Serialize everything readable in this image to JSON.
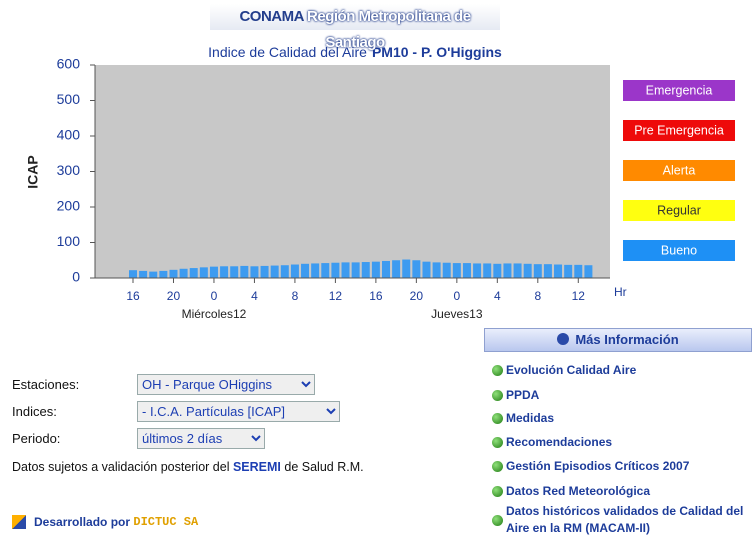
{
  "header": {
    "brand": "CONAMA",
    "region": "Región Metropolitana de Santiago"
  },
  "chart_data": {
    "type": "bar",
    "title": "Indice de Calidad del Aire",
    "title_emphasis": "PM10 - P. O'Higgins",
    "y_label": "ICAP",
    "x_label": "Hr",
    "categories": [
      "16",
      null,
      null,
      null,
      "20",
      null,
      null,
      null,
      "0",
      null,
      null,
      null,
      "4",
      null,
      null,
      null,
      "8",
      null,
      null,
      null,
      "12",
      null,
      null,
      null,
      "16",
      null,
      null,
      null,
      "20",
      null,
      null,
      null,
      "0",
      null,
      null,
      null,
      "4",
      null,
      null,
      null,
      "8",
      null,
      null,
      null,
      "12",
      null
    ],
    "values": [
      22,
      20,
      18,
      20,
      23,
      26,
      28,
      30,
      32,
      33,
      33,
      34,
      33,
      34,
      35,
      36,
      38,
      40,
      41,
      42,
      43,
      44,
      44,
      45,
      46,
      48,
      50,
      52,
      50,
      46,
      44,
      43,
      42,
      42,
      41,
      41,
      40,
      41,
      41,
      40,
      39,
      39,
      38,
      37,
      37,
      36
    ],
    "color": "#3d9bf0",
    "day_labels": [
      "Miércoles12",
      "Jueves13"
    ],
    "ylim": [
      0,
      600
    ],
    "yticks": [
      0,
      100,
      200,
      300,
      400,
      500,
      600
    ],
    "grid": false,
    "levels": [
      {
        "name": "Emergencia",
        "color": "#9b36c9"
      },
      {
        "name": "Pre Emergencia",
        "color": "#ee0a0a"
      },
      {
        "name": "Alerta",
        "color": "#ff8a00"
      },
      {
        "name": "Regular",
        "color": "#ffff10"
      },
      {
        "name": "Bueno",
        "color": "#1e90f5"
      }
    ]
  },
  "form": {
    "fields": [
      {
        "label": "Estaciones:",
        "value": "OH - Parque OHiggins"
      },
      {
        "label": "Indices:",
        "value": "- I.C.A. Partículas [ICAP]"
      },
      {
        "label": "Periodo:",
        "value": "últimos 2 días"
      }
    ],
    "note": [
      "Datos sujetos a validación posterior del",
      "SEREMI",
      "de Salud R.M."
    ]
  },
  "info": {
    "title": "Más Información",
    "links": [
      "Evolución Calidad Aire",
      "PPDA",
      "Medidas",
      "Recomendaciones",
      "Gestión Episodios Críticos 2007",
      "Datos Red Meteorológica",
      "Datos históricos validados de Calidad del Aire en la RM (MACAM-II)"
    ]
  },
  "footer": {
    "text": "Desarrollado por",
    "brand": "DICTUC SA"
  }
}
